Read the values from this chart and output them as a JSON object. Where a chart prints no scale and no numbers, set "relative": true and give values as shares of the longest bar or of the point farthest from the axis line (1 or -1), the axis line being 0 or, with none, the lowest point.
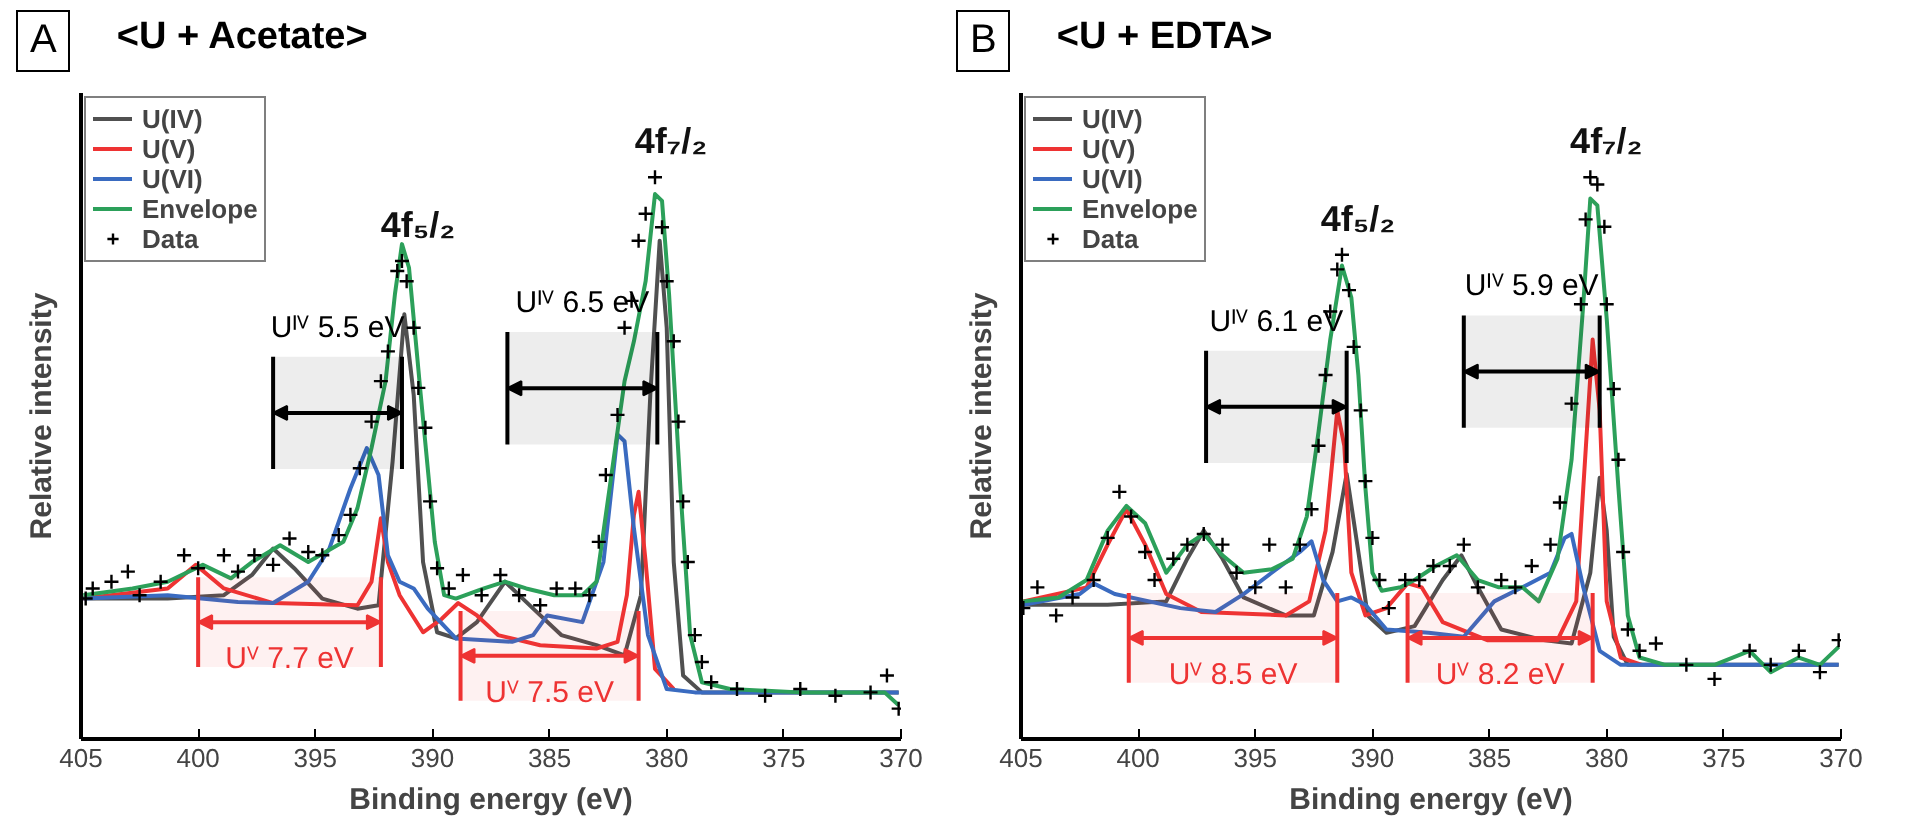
{
  "chart_data": [
    {
      "type": "line",
      "title": "<U + Acetate>",
      "xlabel": "Binding energy (eV)",
      "ylabel": "Relative intensity",
      "xlim": [
        405,
        370
      ],
      "xticks": [
        405,
        400,
        395,
        390,
        385,
        380,
        375,
        370
      ],
      "relative": true,
      "grid": false,
      "legend": "top left",
      "series": [
        {
          "name": "U(IV)",
          "color": "#505050",
          "x": [
            404.9,
            401.3,
            398.9,
            397.7,
            396.8,
            395.9,
            394.7,
            393.2,
            392.3,
            391.7,
            391.2,
            390.8,
            390.4,
            389.8,
            389.0,
            388.1,
            386.9,
            385.7,
            384.5,
            383.0,
            381.8,
            381.1,
            380.7,
            380.3,
            380.0,
            379.7,
            379.3,
            378.5,
            370.1
          ],
          "values": [
            0.25,
            0.25,
            0.256,
            0.292,
            0.339,
            0.304,
            0.25,
            0.232,
            0.238,
            0.494,
            0.756,
            0.613,
            0.315,
            0.19,
            0.179,
            0.208,
            0.28,
            0.232,
            0.185,
            0.167,
            0.149,
            0.256,
            0.613,
            0.887,
            0.732,
            0.315,
            0.113,
            0.083,
            0.083
          ]
        },
        {
          "name": "U(V)",
          "color": "#ee3333",
          "x": [
            404.9,
            401.3,
            400.1,
            398.9,
            396.8,
            393.2,
            392.6,
            392.2,
            391.9,
            391.4,
            390.4,
            389.6,
            388.9,
            388.1,
            387.2,
            385.4,
            383.0,
            382.1,
            381.7,
            381.4,
            381.2,
            380.9,
            380.5,
            379.7
          ],
          "values": [
            0.25,
            0.268,
            0.31,
            0.268,
            0.242,
            0.238,
            0.28,
            0.393,
            0.315,
            0.256,
            0.19,
            0.214,
            0.242,
            0.22,
            0.185,
            0.167,
            0.161,
            0.173,
            0.256,
            0.399,
            0.44,
            0.315,
            0.125,
            0.089
          ]
        },
        {
          "name": "U(VI)",
          "color": "#3a6bc0",
          "x": [
            404.9,
            401.3,
            398.3,
            396.8,
            395.3,
            394.4,
            393.5,
            392.8,
            392.3,
            391.9,
            391.4,
            390.8,
            390.2,
            389.0,
            386.6,
            385.7,
            385.1,
            383.6,
            382.7,
            382.1,
            381.8,
            381.4,
            380.8,
            380.0,
            378.8,
            370.1
          ],
          "values": [
            0.25,
            0.256,
            0.244,
            0.242,
            0.28,
            0.339,
            0.446,
            0.518,
            0.47,
            0.327,
            0.28,
            0.268,
            0.232,
            0.179,
            0.173,
            0.185,
            0.22,
            0.208,
            0.315,
            0.542,
            0.53,
            0.375,
            0.185,
            0.089,
            0.083,
            0.083
          ]
        },
        {
          "name": "Envelope",
          "color": "#2ca05a",
          "x": [
            404.9,
            402.8,
            401.3,
            399.8,
            398.6,
            397.7,
            396.5,
            395.3,
            393.8,
            393.2,
            392.6,
            392.0,
            391.6,
            391.3,
            391.0,
            390.5,
            389.9,
            389.5,
            389.0,
            387.8,
            386.9,
            386.0,
            384.8,
            383.6,
            383.0,
            382.4,
            381.8,
            381.4,
            380.9,
            380.5,
            380.2,
            379.9,
            379.4,
            379.0,
            378.5,
            377.3,
            374.3,
            370.7,
            370.1
          ],
          "values": [
            0.256,
            0.268,
            0.28,
            0.31,
            0.286,
            0.315,
            0.345,
            0.315,
            0.351,
            0.411,
            0.518,
            0.637,
            0.792,
            0.881,
            0.839,
            0.613,
            0.351,
            0.256,
            0.25,
            0.268,
            0.28,
            0.268,
            0.256,
            0.256,
            0.28,
            0.458,
            0.637,
            0.708,
            0.815,
            0.97,
            0.958,
            0.792,
            0.435,
            0.185,
            0.101,
            0.089,
            0.083,
            0.083,
            0.06
          ]
        },
        {
          "type": "scatter",
          "name": "Data",
          "color": "#000000",
          "marker": "cross",
          "x": [
            404.8,
            404.5,
            403.7,
            403.0,
            402.5,
            401.6,
            400.6,
            400.0,
            398.9,
            398.3,
            397.6,
            396.8,
            396.1,
            395.3,
            394.7,
            394.0,
            393.5,
            393.1,
            392.6,
            392.2,
            391.9,
            391.5,
            391.3,
            391.1,
            390.8,
            390.6,
            390.3,
            390.1,
            389.8,
            389.3,
            388.7,
            387.9,
            387.1,
            386.3,
            385.4,
            384.7,
            383.9,
            383.3,
            382.9,
            382.6,
            382.1,
            381.8,
            381.5,
            381.2,
            380.9,
            380.5,
            380.2,
            380.0,
            379.7,
            379.5,
            379.3,
            379.1,
            378.8,
            378.5,
            378.1,
            377.0,
            375.8,
            374.3,
            372.8,
            371.3,
            370.6,
            370.1
          ],
          "values": [
            0.25,
            0.268,
            0.28,
            0.298,
            0.256,
            0.28,
            0.327,
            0.304,
            0.327,
            0.298,
            0.327,
            0.31,
            0.357,
            0.333,
            0.327,
            0.363,
            0.399,
            0.482,
            0.565,
            0.637,
            0.69,
            0.833,
            0.851,
            0.815,
            0.732,
            0.625,
            0.554,
            0.423,
            0.304,
            0.268,
            0.292,
            0.256,
            0.292,
            0.256,
            0.238,
            0.268,
            0.268,
            0.256,
            0.351,
            0.47,
            0.577,
            0.732,
            0.78,
            0.887,
            0.935,
            1.0,
            0.911,
            0.815,
            0.708,
            0.565,
            0.423,
            0.315,
            0.185,
            0.137,
            0.101,
            0.089,
            0.077,
            0.089,
            0.077,
            0.083,
            0.113,
            0.054
          ]
        }
      ],
      "annotations": [
        "A",
        {
          "text": "4f₅/₂",
          "x": 391.3,
          "y": 0.851
        },
        {
          "text": "4f₇/₂",
          "x": 380.5,
          "y": 1.0
        }
      ],
      "bands": [
        {
          "axis": "x",
          "from": 396.8,
          "to": 391.3,
          "label": "Uᴵⱽ 5.5 eV",
          "color": "#000000"
        },
        {
          "axis": "x",
          "from": 386.8,
          "to": 380.4,
          "label": "Uᴵⱽ 6.5 eV",
          "color": "#000000"
        },
        {
          "axis": "x",
          "from": 400.0,
          "to": 392.2,
          "label": "Uⱽ 7.7 eV",
          "color": "#ee3333"
        },
        {
          "axis": "x",
          "from": 388.8,
          "to": 381.2,
          "label": "Uⱽ 7.5 eV",
          "color": "#ee3333"
        }
      ]
    },
    {
      "type": "line",
      "title": "<U + EDTA>",
      "xlabel": "Binding energy (eV)",
      "ylabel": "Relative intensity",
      "xlim": [
        405,
        370
      ],
      "xticks": [
        405,
        400,
        395,
        390,
        385,
        380,
        375,
        370
      ],
      "relative": true,
      "grid": false,
      "legend": "top left",
      "series": [
        {
          "name": "U(IV)",
          "color": "#505050",
          "x": [
            404.9,
            401.3,
            398.8,
            397.9,
            397.2,
            396.4,
            395.5,
            393.7,
            392.5,
            391.7,
            391.1,
            390.6,
            390.2,
            389.4,
            388.2,
            387.0,
            386.2,
            385.5,
            384.5,
            382.7,
            381.5,
            380.7,
            380.3,
            380.0,
            379.7,
            379.1,
            370.1
          ],
          "values": [
            0.239,
            0.239,
            0.245,
            0.321,
            0.371,
            0.321,
            0.252,
            0.22,
            0.22,
            0.333,
            0.472,
            0.333,
            0.22,
            0.189,
            0.201,
            0.283,
            0.327,
            0.27,
            0.195,
            0.176,
            0.17,
            0.296,
            0.465,
            0.371,
            0.182,
            0.132,
            0.132
          ]
        },
        {
          "name": "U(V)",
          "color": "#ee3333",
          "x": [
            404.9,
            402.2,
            401.3,
            400.5,
            399.7,
            398.8,
            397.3,
            393.7,
            392.7,
            392.0,
            391.5,
            391.2,
            390.9,
            390.3,
            389.4,
            388.5,
            387.9,
            387.0,
            385.1,
            382.1,
            381.3,
            381.0,
            380.6,
            380.3,
            380.0,
            379.4,
            378.5
          ],
          "values": [
            0.245,
            0.27,
            0.346,
            0.409,
            0.346,
            0.258,
            0.226,
            0.22,
            0.245,
            0.371,
            0.585,
            0.522,
            0.296,
            0.22,
            0.233,
            0.277,
            0.27,
            0.208,
            0.176,
            0.176,
            0.245,
            0.447,
            0.711,
            0.585,
            0.245,
            0.145,
            0.132
          ]
        },
        {
          "name": "U(VI)",
          "color": "#3a6bc0",
          "x": [
            404.9,
            402.5,
            401.9,
            401.0,
            398.2,
            396.7,
            395.5,
            394.3,
            393.1,
            392.6,
            392.1,
            391.5,
            390.9,
            390.3,
            389.4,
            387.6,
            386.1,
            384.8,
            383.6,
            382.4,
            381.8,
            381.5,
            381.0,
            380.3,
            379.4,
            370.1
          ],
          "values": [
            0.239,
            0.258,
            0.277,
            0.258,
            0.233,
            0.226,
            0.258,
            0.296,
            0.333,
            0.352,
            0.283,
            0.245,
            0.252,
            0.239,
            0.195,
            0.189,
            0.182,
            0.245,
            0.27,
            0.296,
            0.358,
            0.365,
            0.27,
            0.157,
            0.132,
            0.132
          ]
        },
        {
          "name": "Envelope",
          "color": "#2ca05a",
          "x": [
            404.9,
            403.4,
            402.2,
            401.3,
            400.5,
            399.7,
            398.8,
            397.9,
            397.2,
            396.4,
            395.5,
            394.3,
            393.4,
            392.8,
            392.3,
            391.8,
            391.3,
            390.9,
            390.6,
            390.3,
            390.0,
            389.6,
            388.8,
            388.2,
            387.3,
            386.4,
            385.5,
            384.6,
            383.6,
            382.9,
            382.1,
            381.5,
            381.0,
            380.7,
            380.4,
            380.0,
            379.5,
            379.1,
            378.6,
            377.5,
            375.4,
            373.9,
            373.0,
            371.8,
            370.9,
            370.1
          ],
          "values": [
            0.245,
            0.252,
            0.283,
            0.371,
            0.415,
            0.384,
            0.296,
            0.346,
            0.365,
            0.327,
            0.296,
            0.302,
            0.321,
            0.396,
            0.547,
            0.711,
            0.843,
            0.786,
            0.648,
            0.447,
            0.296,
            0.264,
            0.27,
            0.283,
            0.308,
            0.327,
            0.283,
            0.27,
            0.27,
            0.245,
            0.321,
            0.497,
            0.774,
            0.962,
            0.95,
            0.748,
            0.447,
            0.22,
            0.145,
            0.132,
            0.132,
            0.157,
            0.119,
            0.145,
            0.132,
            0.164
          ]
        },
        {
          "type": "scatter",
          "name": "Data",
          "color": "#000000",
          "marker": "cross",
          "x": [
            404.9,
            404.3,
            403.5,
            402.8,
            401.9,
            401.3,
            400.8,
            400.3,
            399.7,
            399.3,
            398.5,
            397.9,
            397.2,
            396.4,
            395.8,
            395.0,
            394.4,
            393.7,
            393.1,
            392.6,
            392.3,
            392.0,
            391.8,
            391.5,
            391.3,
            391.0,
            390.8,
            390.5,
            390.3,
            390.0,
            389.7,
            389.3,
            388.6,
            388.0,
            387.4,
            386.7,
            386.1,
            385.5,
            384.5,
            383.9,
            383.2,
            382.4,
            382.0,
            381.5,
            381.1,
            380.9,
            380.7,
            380.4,
            380.1,
            380.0,
            379.7,
            379.5,
            379.3,
            379.1,
            378.6,
            377.9,
            376.6,
            375.4,
            373.9,
            373.0,
            371.8,
            370.9,
            370.1
          ],
          "values": [
            0.233,
            0.27,
            0.22,
            0.252,
            0.283,
            0.358,
            0.44,
            0.396,
            0.333,
            0.283,
            0.321,
            0.346,
            0.365,
            0.346,
            0.296,
            0.27,
            0.346,
            0.27,
            0.346,
            0.409,
            0.522,
            0.648,
            0.761,
            0.836,
            0.862,
            0.799,
            0.698,
            0.585,
            0.459,
            0.358,
            0.283,
            0.233,
            0.283,
            0.283,
            0.308,
            0.308,
            0.346,
            0.27,
            0.283,
            0.27,
            0.308,
            0.346,
            0.421,
            0.597,
            0.774,
            0.925,
            1.0,
            0.987,
            0.912,
            0.774,
            0.623,
            0.497,
            0.333,
            0.195,
            0.157,
            0.17,
            0.132,
            0.107,
            0.157,
            0.132,
            0.157,
            0.119,
            0.176
          ]
        }
      ],
      "annotations": [
        "B",
        {
          "text": "4f₅/₂",
          "x": 391.3,
          "y": 0.862
        },
        {
          "text": "4f₇/₂",
          "x": 380.7,
          "y": 1.0
        }
      ],
      "bands": [
        {
          "axis": "x",
          "from": 397.1,
          "to": 391.1,
          "label": "Uᴵⱽ 6.1 eV",
          "color": "#000000"
        },
        {
          "axis": "x",
          "from": 386.1,
          "to": 380.3,
          "label": "Uᴵⱽ 5.9 eV",
          "color": "#000000"
        },
        {
          "axis": "x",
          "from": 400.4,
          "to": 391.5,
          "label": "Uⱽ 8.5 eV",
          "color": "#ee3333"
        },
        {
          "axis": "x",
          "from": 388.5,
          "to": 380.6,
          "label": "Uⱽ 8.2 eV",
          "color": "#ee3333"
        }
      ]
    }
  ]
}
